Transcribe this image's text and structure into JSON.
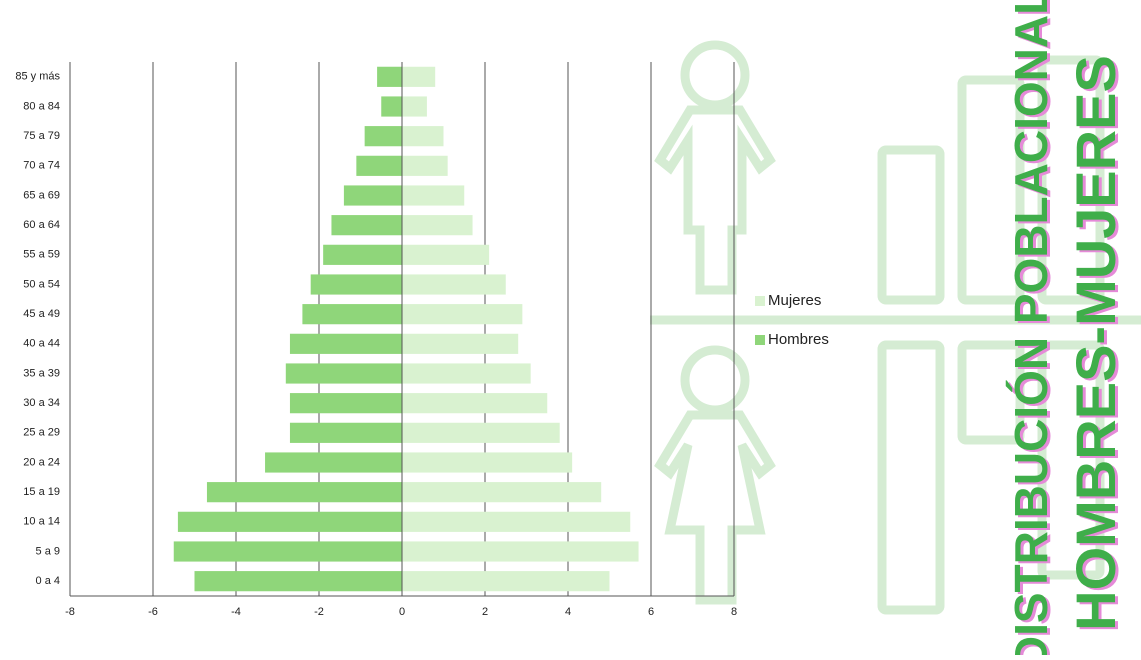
{
  "chart_data": {
    "type": "pyramid",
    "categories": [
      "0 a 4",
      "5 a 9",
      "10 a 14",
      "15 a 19",
      "20 a 24",
      "25 a 29",
      "30 a 34",
      "35 a 39",
      "40 a 44",
      "45 a 49",
      "50 a 54",
      "55 a 59",
      "60 a 64",
      "65 a 69",
      "70 a 74",
      "75 a 79",
      "80 a 84",
      "85 y más"
    ],
    "series": [
      {
        "name": "Mujeres",
        "color": "#d9f2d0",
        "values": [
          5.0,
          5.7,
          5.5,
          4.8,
          4.1,
          3.8,
          3.5,
          3.1,
          2.8,
          2.9,
          2.5,
          2.1,
          1.7,
          1.5,
          1.1,
          1.0,
          0.6,
          0.8
        ]
      },
      {
        "name": "Hombres",
        "color": "#8fd67a",
        "values": [
          -5.0,
          -5.5,
          -5.4,
          -4.7,
          -3.3,
          -2.7,
          -2.7,
          -2.8,
          -2.7,
          -2.4,
          -2.2,
          -1.9,
          -1.7,
          -1.4,
          -1.1,
          -0.9,
          -0.5,
          -0.6
        ]
      }
    ],
    "xlim": [
      -8,
      8
    ],
    "xticks": [
      -8,
      -6,
      -4,
      -2,
      0,
      2,
      4,
      6,
      8
    ],
    "grid": true,
    "legend": "right"
  },
  "banner": {
    "line1": "DISTRIBUCIÓN POBLACIONAL",
    "line2": "HOMBRES-MUJERES"
  }
}
